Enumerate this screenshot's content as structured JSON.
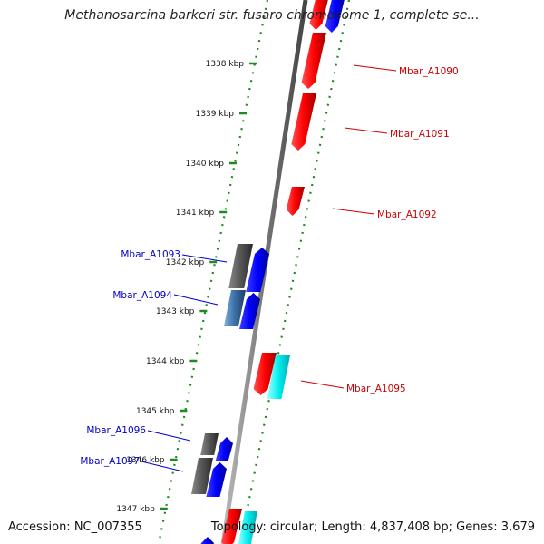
{
  "title": "Methanosarcina barkeri str. fusaro chromosome 1, complete se...",
  "footer": {
    "accession": "Accession: NC_007355",
    "summary": "Topology: circular; Length: 4,837,408 bp; Genes: 3,679"
  },
  "colors": {
    "backbone": "#777777",
    "tick_dots": "#1f8a1f",
    "forward_gene": "#0000ee",
    "reverse_gene": "#ee0000",
    "pseudo_gene": "#00e5ee",
    "dark_gene": "#555555",
    "steel_gene": "#3a6ea5",
    "label_left": "#0000cc",
    "label_right": "#cc0000"
  },
  "ticks": [
    {
      "label": "1338 kbp"
    },
    {
      "label": "1339 kbp"
    },
    {
      "label": "1340 kbp"
    },
    {
      "label": "1341 kbp"
    },
    {
      "label": "1342 kbp"
    },
    {
      "label": "1343 kbp"
    },
    {
      "label": "1344 kbp"
    },
    {
      "label": "1345 kbp"
    },
    {
      "label": "1346 kbp"
    },
    {
      "label": "1347 kbp"
    }
  ],
  "gene_labels": [
    {
      "text": "Mbar_A1090",
      "side": "right"
    },
    {
      "text": "Mbar_A1091",
      "side": "right"
    },
    {
      "text": "Mbar_A1092",
      "side": "right"
    },
    {
      "text": "Mbar_A1093",
      "side": "left"
    },
    {
      "text": "Mbar_A1094",
      "side": "left"
    },
    {
      "text": "Mbar_A1095",
      "side": "right"
    },
    {
      "text": "Mbar_A1096",
      "side": "left"
    },
    {
      "text": "Mbar_A1097",
      "side": "left"
    }
  ]
}
